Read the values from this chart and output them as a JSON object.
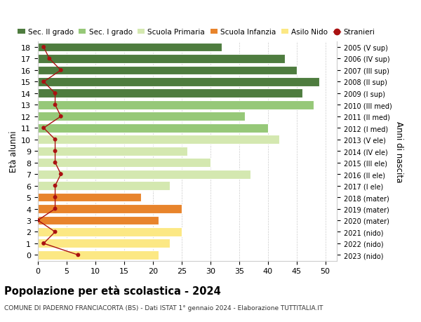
{
  "ages": [
    0,
    1,
    2,
    3,
    4,
    5,
    6,
    7,
    8,
    9,
    10,
    11,
    12,
    13,
    14,
    15,
    16,
    17,
    18
  ],
  "bar_values": [
    21,
    23,
    25,
    21,
    25,
    18,
    23,
    37,
    30,
    26,
    42,
    40,
    36,
    48,
    46,
    49,
    45,
    43,
    32
  ],
  "bar_colors": [
    "#fce884",
    "#fce884",
    "#fce884",
    "#e8842c",
    "#e8842c",
    "#e8842c",
    "#d4e8b0",
    "#d4e8b0",
    "#d4e8b0",
    "#d4e8b0",
    "#d4e8b0",
    "#96c878",
    "#96c878",
    "#96c878",
    "#4e7c3f",
    "#4e7c3f",
    "#4e7c3f",
    "#4e7c3f",
    "#4e7c3f"
  ],
  "stranieri_values": [
    7,
    1,
    3,
    0,
    3,
    3,
    3,
    4,
    3,
    3,
    3,
    1,
    4,
    3,
    3,
    1,
    4,
    2,
    1
  ],
  "right_labels": [
    "2023 (nido)",
    "2022 (nido)",
    "2021 (nido)",
    "2020 (mater)",
    "2019 (mater)",
    "2018 (mater)",
    "2017 (I ele)",
    "2016 (II ele)",
    "2015 (III ele)",
    "2014 (IV ele)",
    "2013 (V ele)",
    "2012 (I med)",
    "2011 (II med)",
    "2010 (III med)",
    "2009 (I sup)",
    "2008 (II sup)",
    "2007 (III sup)",
    "2006 (IV sup)",
    "2005 (V sup)"
  ],
  "ylabel": "Età alunni",
  "right_ylabel": "Anni di nascita",
  "title": "Popolazione per età scolastica - 2024",
  "subtitle": "COMUNE DI PADERNO FRANCIACORTA (BS) - Dati ISTAT 1° gennaio 2024 - Elaborazione TUTTITALIA.IT",
  "xlim": [
    0,
    52
  ],
  "xticks": [
    0,
    5,
    10,
    15,
    20,
    25,
    30,
    35,
    40,
    45,
    50
  ],
  "legend_labels": [
    "Sec. II grado",
    "Sec. I grado",
    "Scuola Primaria",
    "Scuola Infanzia",
    "Asilo Nido",
    "Stranieri"
  ],
  "legend_colors": [
    "#4e7c3f",
    "#96c878",
    "#d4e8b0",
    "#e8842c",
    "#fce884",
    "#aa1111"
  ],
  "bg_color": "#ffffff",
  "bar_height": 0.78,
  "stranieri_color": "#aa1111"
}
